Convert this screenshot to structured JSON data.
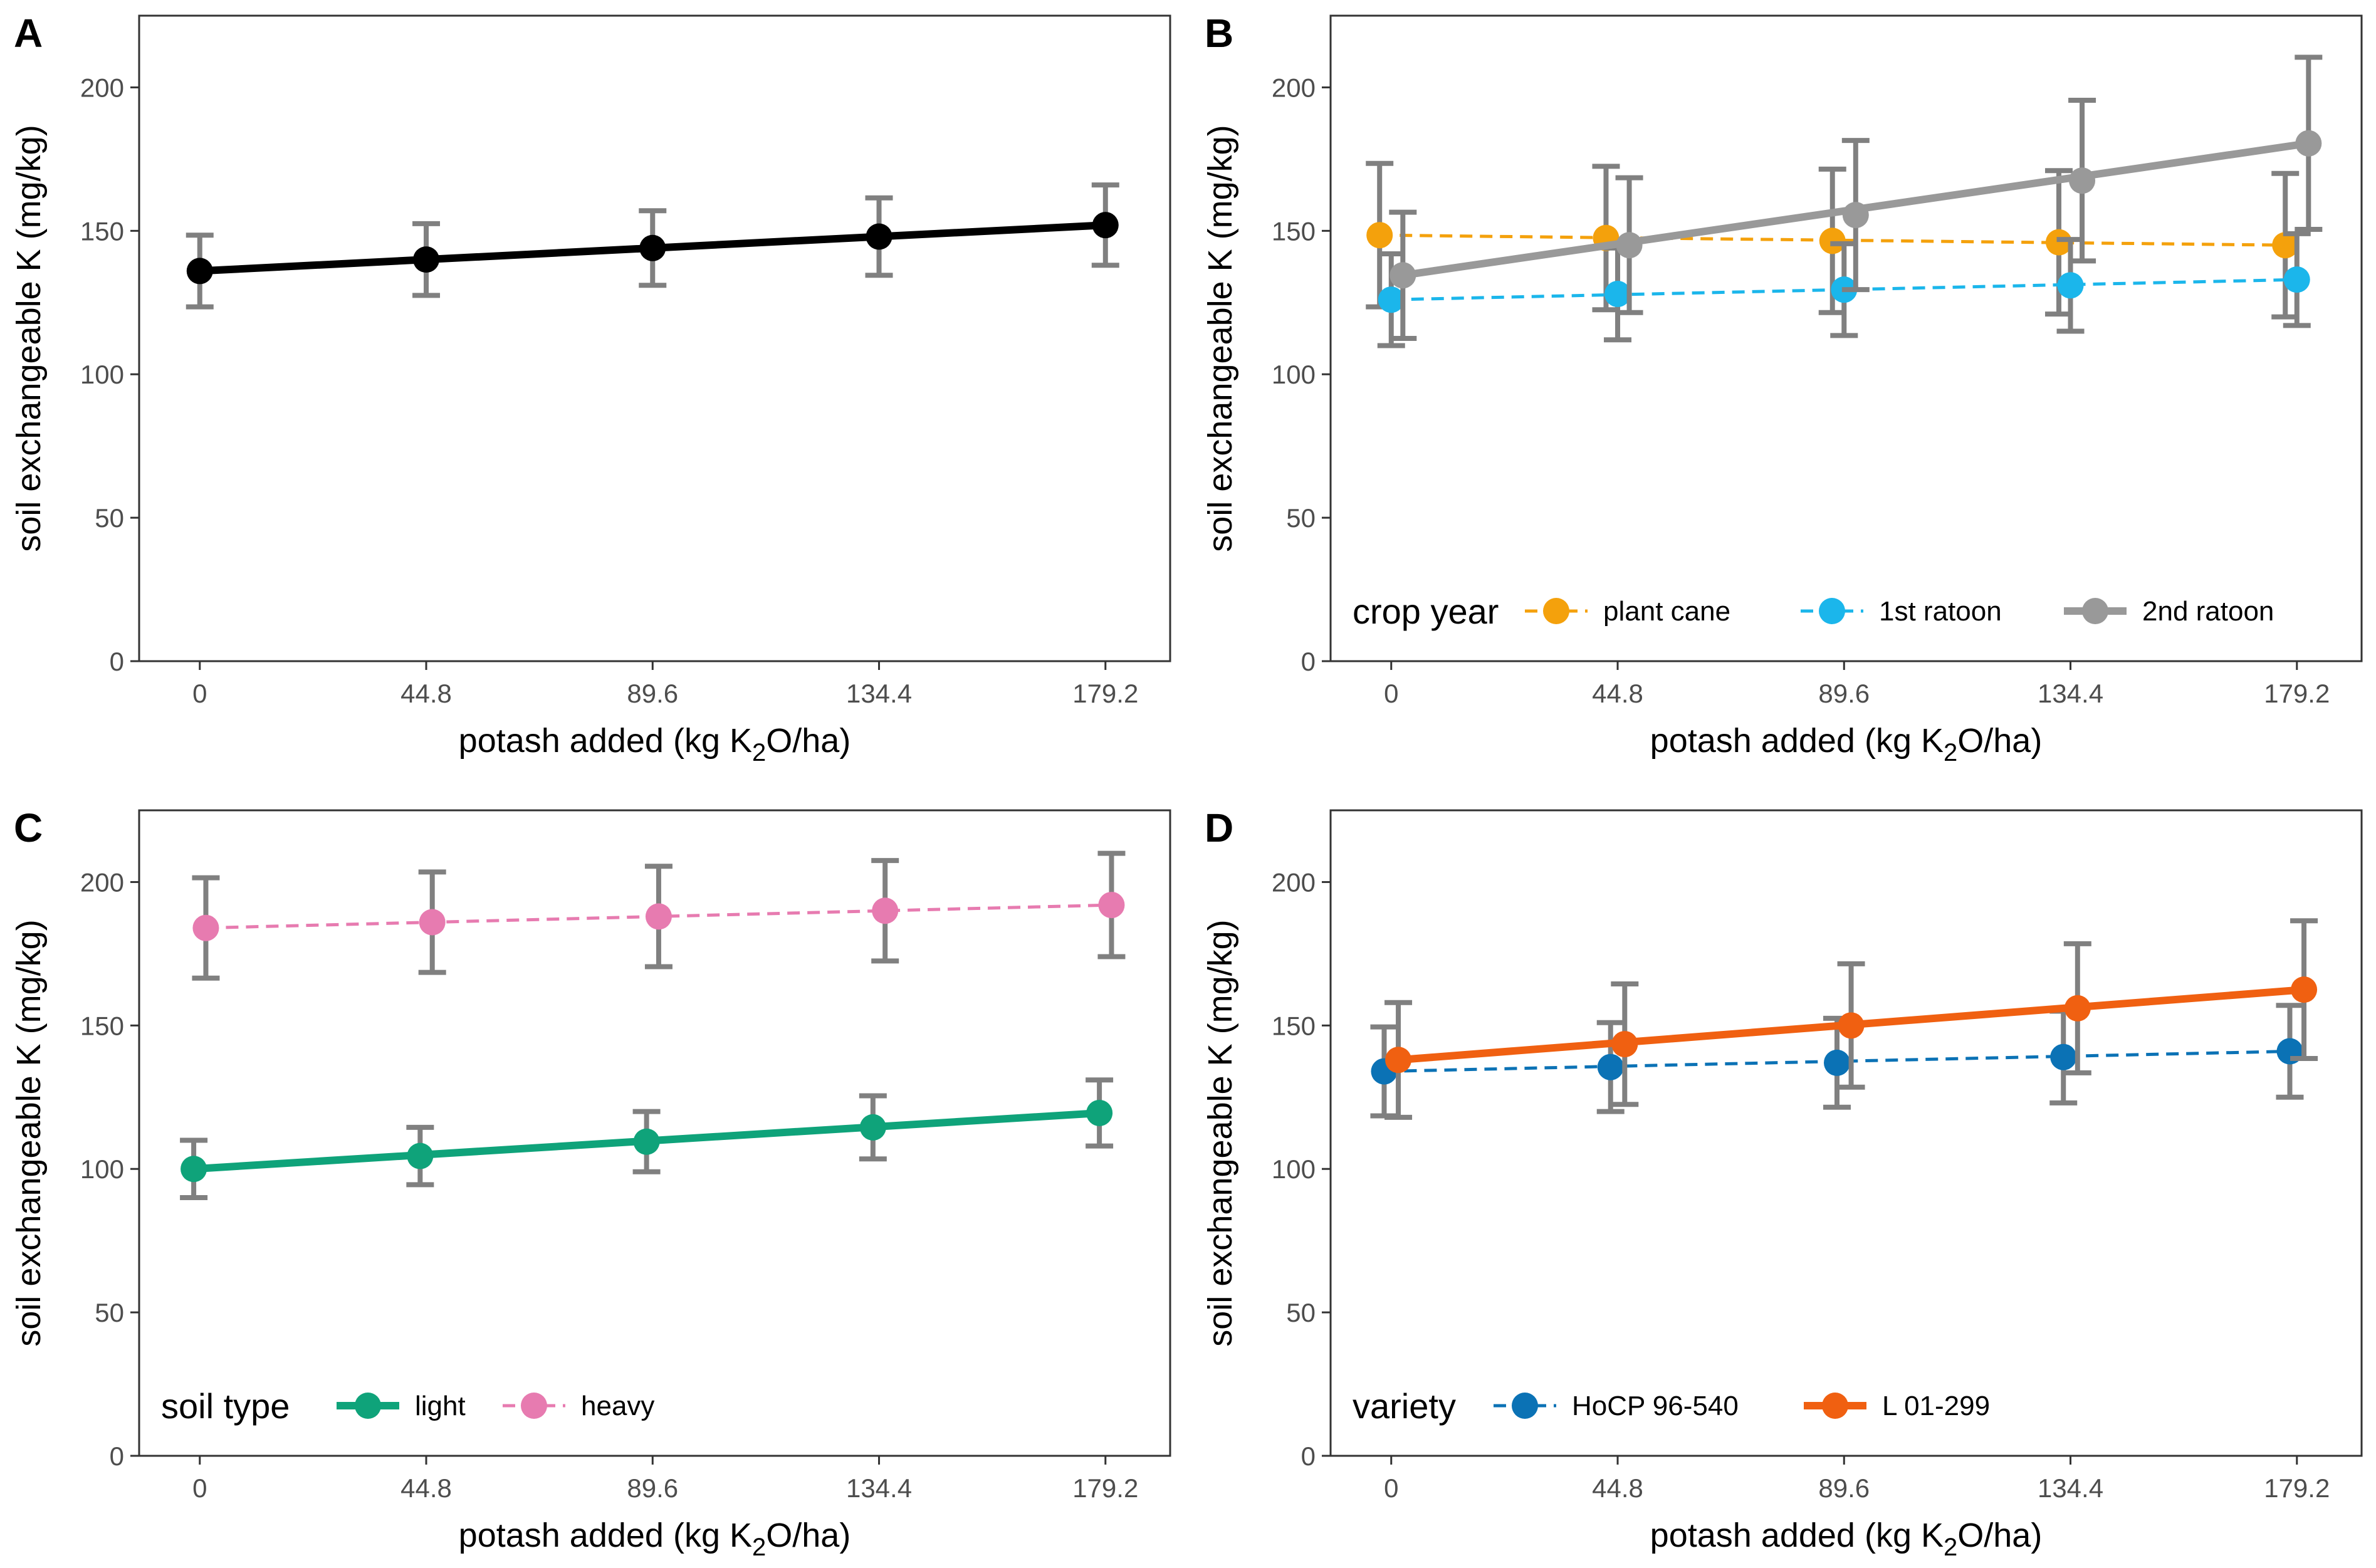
{
  "figure": {
    "layout": "2x2 grid",
    "panels": [
      "A",
      "B",
      "C",
      "D"
    ]
  },
  "style": {
    "error_bar_color": "#808080",
    "axis_text_color": "#4d4d4d",
    "title_color": "#000000",
    "panel_border_color": "#333333"
  },
  "chart_data": [
    {
      "panel": "A",
      "type": "line",
      "x": [
        0,
        44.8,
        89.6,
        134.4,
        179.2
      ],
      "tick_labels": [
        "0",
        "44.8",
        "89.6",
        "134.4",
        "179.2"
      ],
      "xlabel_parts": [
        "potash added (kg K",
        "2",
        "O/ha)"
      ],
      "ylabel": "soil exchangeable K (mg/kg)",
      "xlim": [
        -12,
        192
      ],
      "ylim": [
        0,
        225
      ],
      "y_ticks": [
        0,
        50,
        100,
        150,
        200
      ],
      "legend_title": "",
      "series": [
        {
          "name": "",
          "color": "#000000",
          "dashed": false,
          "width": 12,
          "values": [
            136,
            140,
            144,
            148,
            152
          ],
          "err": [
            12.5,
            12.5,
            13,
            13.5,
            14
          ],
          "offset": 0
        }
      ]
    },
    {
      "panel": "B",
      "type": "line",
      "x": [
        0,
        44.8,
        89.6,
        134.4,
        179.2
      ],
      "tick_labels": [
        "0",
        "44.8",
        "89.6",
        "134.4",
        "179.2"
      ],
      "xlabel_parts": [
        "potash added (kg K",
        "2",
        "O/ha)"
      ],
      "ylabel": "soil exchangeable K (mg/kg)",
      "xlim": [
        -12,
        192
      ],
      "ylim": [
        0,
        225
      ],
      "y_ticks": [
        0,
        50,
        100,
        150,
        200
      ],
      "legend_title": "crop year",
      "series": [
        {
          "name": "plant cane",
          "color": "#F4A10C",
          "dashed": true,
          "width": 5,
          "values": [
            148.5,
            147.5,
            146.5,
            146,
            145
          ],
          "err": [
            25,
            25,
            25,
            25,
            25
          ],
          "offset": -2.3
        },
        {
          "name": "1st ratoon",
          "color": "#1BB6EB",
          "dashed": true,
          "width": 5,
          "values": [
            126,
            128,
            129.5,
            131,
            133
          ],
          "err": [
            16,
            16,
            16,
            16,
            16
          ],
          "offset": 0
        },
        {
          "name": "2nd ratoon",
          "color": "#999999",
          "dashed": false,
          "width": 12,
          "values": [
            134.5,
            145,
            155.5,
            167.5,
            180.5
          ],
          "err": [
            22,
            23.5,
            26,
            28,
            30
          ],
          "offset": 2.3
        }
      ]
    },
    {
      "panel": "C",
      "type": "line",
      "x": [
        0,
        44.8,
        89.6,
        134.4,
        179.2
      ],
      "tick_labels": [
        "0",
        "44.8",
        "89.6",
        "134.4",
        "179.2"
      ],
      "xlabel_parts": [
        "potash added (kg K",
        "2",
        "O/ha)"
      ],
      "ylabel": "soil exchangeable K (mg/kg)",
      "xlim": [
        -12,
        192
      ],
      "ylim": [
        0,
        225
      ],
      "y_ticks": [
        0,
        50,
        100,
        150,
        200
      ],
      "legend_title": "soil type",
      "series": [
        {
          "name": "light",
          "color": "#0FA37A",
          "dashed": false,
          "width": 12,
          "values": [
            100,
            104.5,
            109.5,
            114.5,
            119.5
          ],
          "err": [
            10,
            10,
            10.5,
            11,
            11.5
          ],
          "offset": -1.2
        },
        {
          "name": "heavy",
          "color": "#E77BB0",
          "dashed": true,
          "width": 5,
          "values": [
            184,
            186,
            188,
            190,
            192
          ],
          "err": [
            17.5,
            17.5,
            17.5,
            17.5,
            18
          ],
          "offset": 1.2
        }
      ]
    },
    {
      "panel": "D",
      "type": "line",
      "x": [
        0,
        44.8,
        89.6,
        134.4,
        179.2
      ],
      "tick_labels": [
        "0",
        "44.8",
        "89.6",
        "134.4",
        "179.2"
      ],
      "xlabel_parts": [
        "potash added (kg K",
        "2",
        "O/ha)"
      ],
      "ylabel": "soil exchangeable K (mg/kg)",
      "xlim": [
        -12,
        192
      ],
      "ylim": [
        0,
        225
      ],
      "y_ticks": [
        0,
        50,
        100,
        150,
        200
      ],
      "legend_title": "variety",
      "series": [
        {
          "name": "HoCP 96-540",
          "color": "#0B72B5",
          "dashed": true,
          "width": 5,
          "values": [
            134,
            135.5,
            137,
            139,
            141
          ],
          "err": [
            15.5,
            15.5,
            15.5,
            16,
            16
          ],
          "offset": -1.4
        },
        {
          "name": "L 01-299",
          "color": "#F06011",
          "dashed": false,
          "width": 12,
          "values": [
            138,
            143.5,
            150,
            156,
            162.5
          ],
          "err": [
            20,
            21,
            21.5,
            22.5,
            24
          ],
          "offset": 1.4
        }
      ]
    }
  ]
}
